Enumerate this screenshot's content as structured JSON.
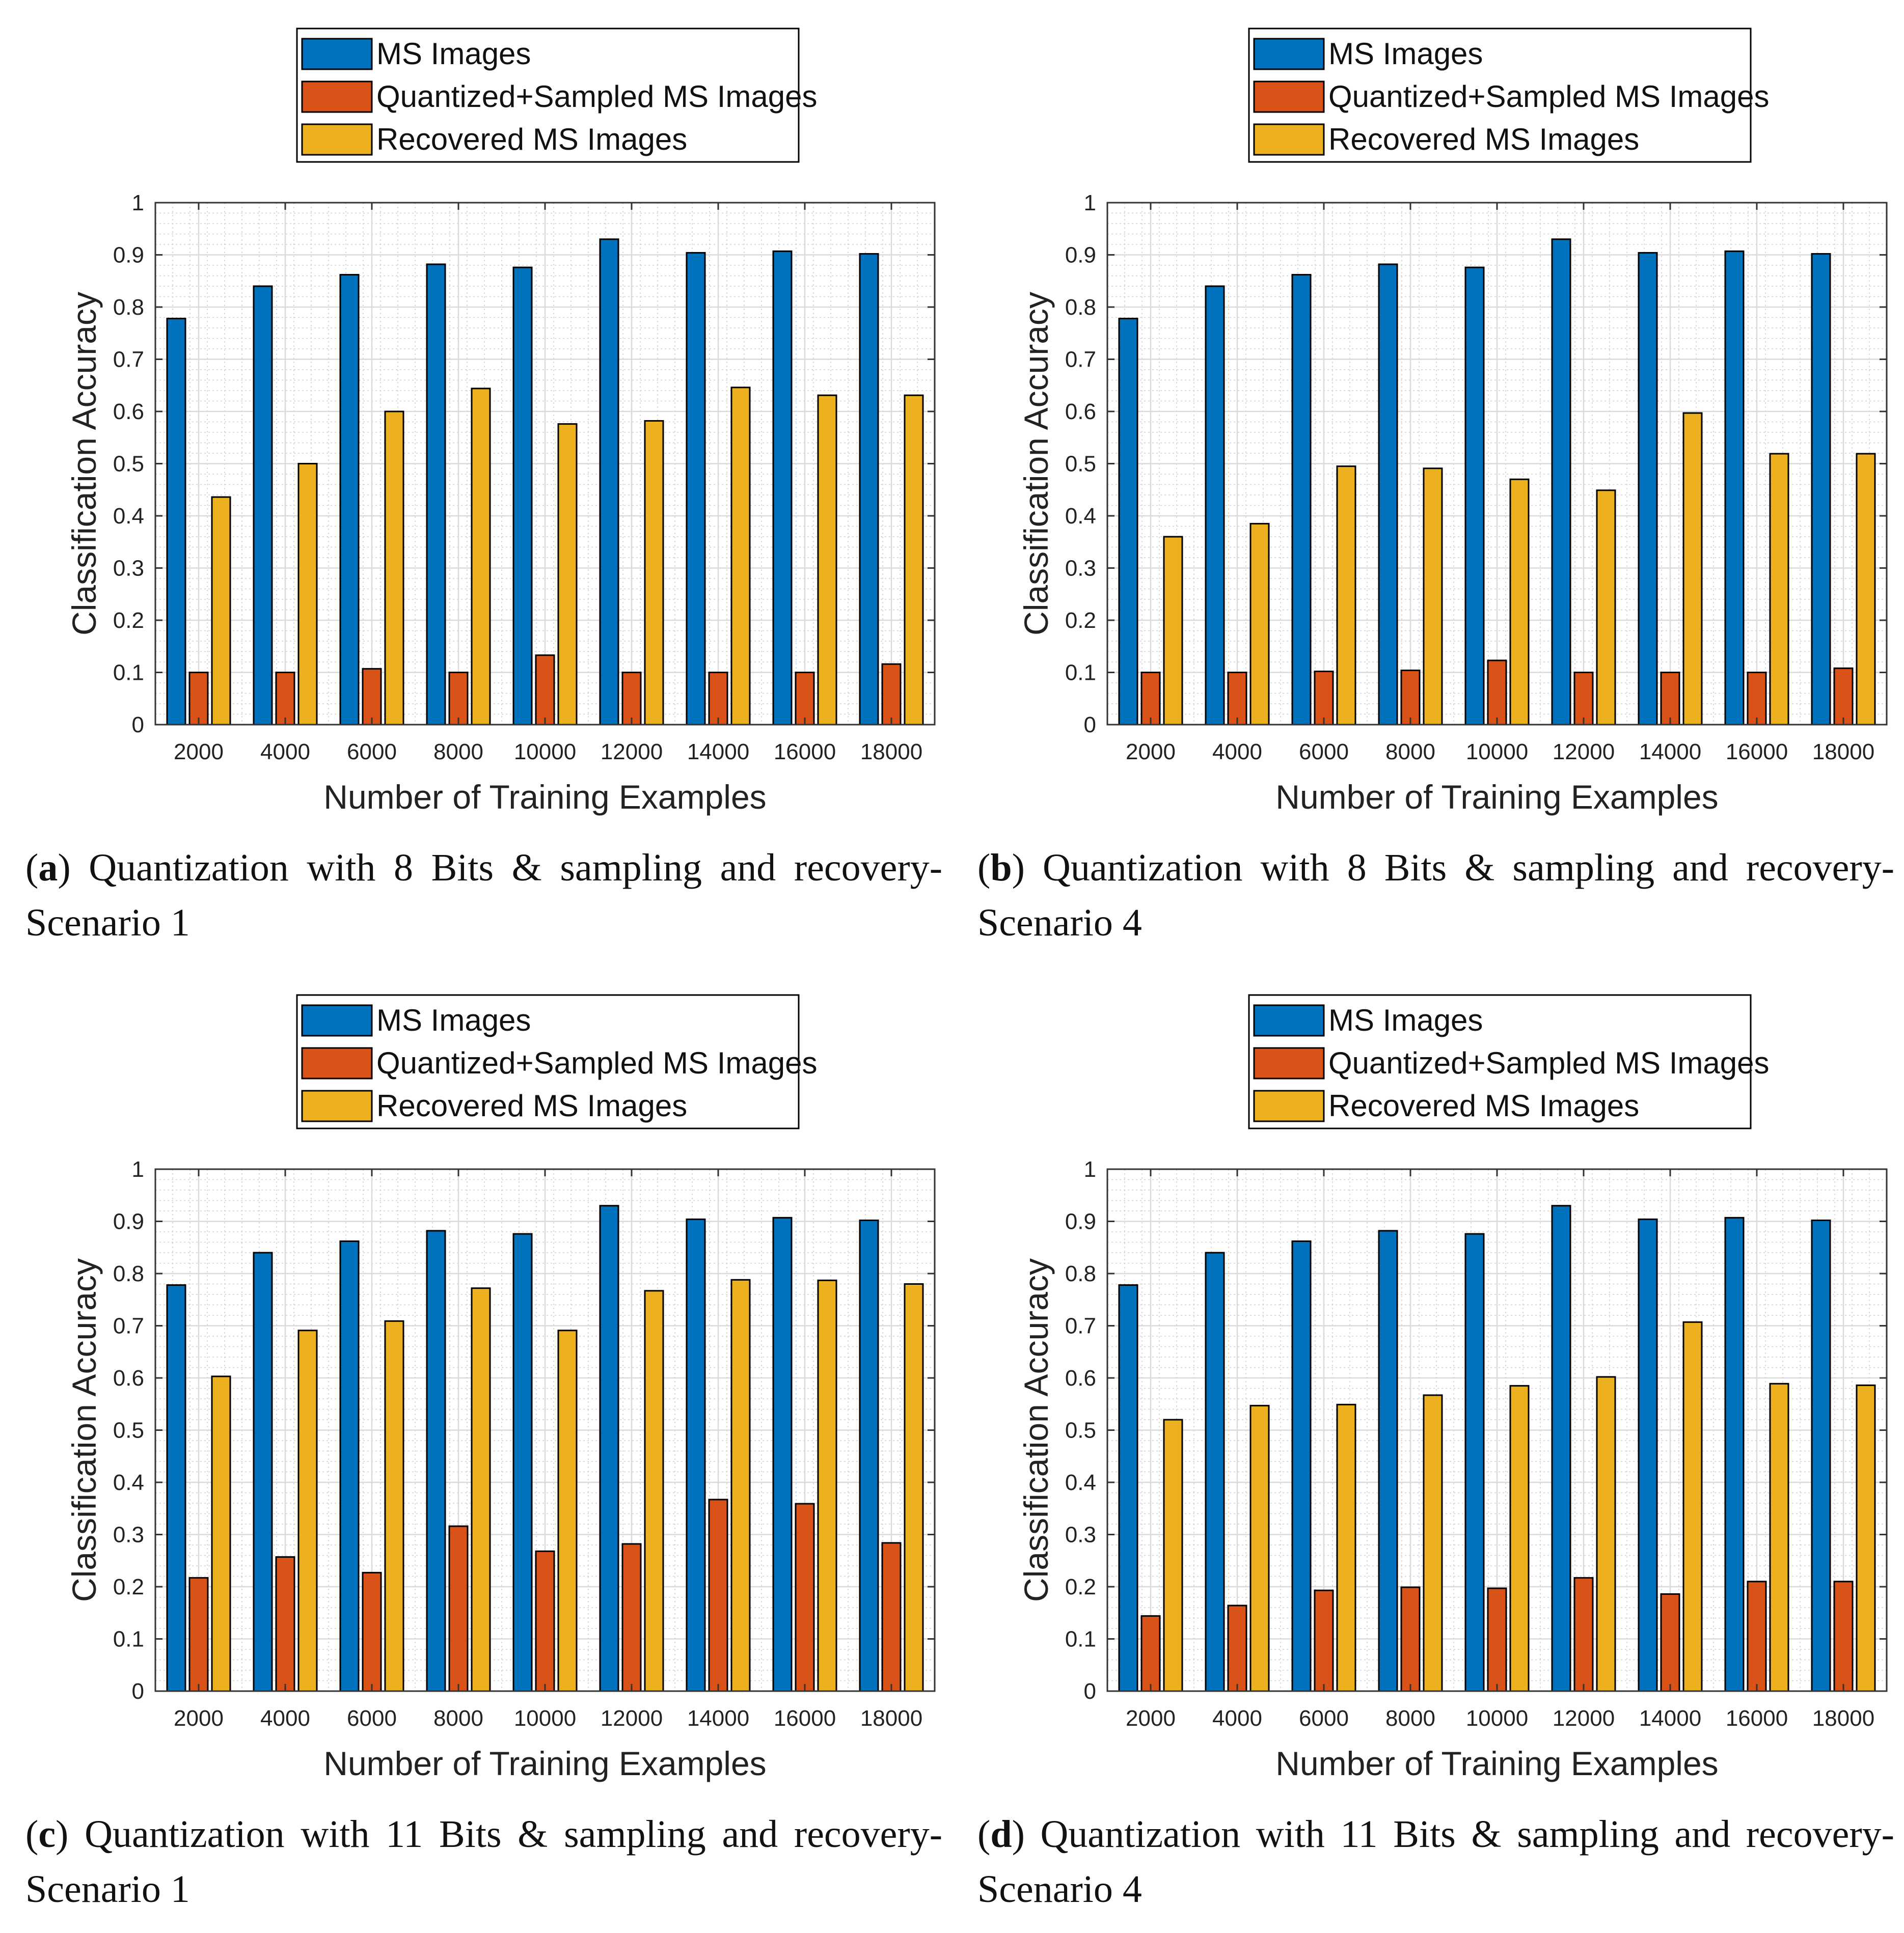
{
  "colors": {
    "ms": "#0072BD",
    "quantized": "#D95319",
    "recovered": "#EDB120"
  },
  "chart_data": [
    {
      "type": "bar",
      "panel_id": "a",
      "categories": [
        "2000",
        "4000",
        "6000",
        "8000",
        "10000",
        "12000",
        "14000",
        "16000",
        "18000"
      ],
      "xlabel": "Number of Training Examples",
      "ylabel": "Classification Accuracy",
      "ylim": [
        0,
        1
      ],
      "yticks": [
        "0",
        "0.1",
        "0.2",
        "0.3",
        "0.4",
        "0.5",
        "0.6",
        "0.7",
        "0.8",
        "0.9",
        "1"
      ],
      "grid": true,
      "legend_position": "top-center",
      "series": [
        {
          "name": "MS Images",
          "values": [
            0.778,
            0.84,
            0.862,
            0.882,
            0.876,
            0.93,
            0.904,
            0.907,
            0.902
          ]
        },
        {
          "name": "Quantized+Sampled MS Images",
          "values": [
            0.1,
            0.1,
            0.107,
            0.1,
            0.133,
            0.1,
            0.1,
            0.1,
            0.116
          ]
        },
        {
          "name": "Recovered MS Images",
          "values": [
            0.436,
            0.5,
            0.6,
            0.644,
            0.576,
            0.582,
            0.646,
            0.631,
            0.631
          ]
        }
      ],
      "caption_label": "a",
      "caption_text": "Quantization with 8 Bits & sampling and recovery-Scenario 1"
    },
    {
      "type": "bar",
      "panel_id": "b",
      "categories": [
        "2000",
        "4000",
        "6000",
        "8000",
        "10000",
        "12000",
        "14000",
        "16000",
        "18000"
      ],
      "xlabel": "Number of Training Examples",
      "ylabel": "Classification Accuracy",
      "ylim": [
        0,
        1
      ],
      "yticks": [
        "0",
        "0.1",
        "0.2",
        "0.3",
        "0.4",
        "0.5",
        "0.6",
        "0.7",
        "0.8",
        "0.9",
        "1"
      ],
      "grid": true,
      "legend_position": "top-center",
      "series": [
        {
          "name": "MS Images",
          "values": [
            0.778,
            0.84,
            0.862,
            0.882,
            0.876,
            0.93,
            0.904,
            0.907,
            0.902
          ]
        },
        {
          "name": "Quantized+Sampled MS Images",
          "values": [
            0.1,
            0.1,
            0.102,
            0.104,
            0.123,
            0.1,
            0.1,
            0.1,
            0.108
          ]
        },
        {
          "name": "Recovered MS Images",
          "values": [
            0.36,
            0.385,
            0.495,
            0.491,
            0.47,
            0.449,
            0.597,
            0.519,
            0.519
          ]
        }
      ],
      "caption_label": "b",
      "caption_text": "Quantization with 8 Bits & sampling and recovery-Scenario 4"
    },
    {
      "type": "bar",
      "panel_id": "c",
      "categories": [
        "2000",
        "4000",
        "6000",
        "8000",
        "10000",
        "12000",
        "14000",
        "16000",
        "18000"
      ],
      "xlabel": "Number of Training Examples",
      "ylabel": "Classification Accuracy",
      "ylim": [
        0,
        1
      ],
      "yticks": [
        "0",
        "0.1",
        "0.2",
        "0.3",
        "0.4",
        "0.5",
        "0.6",
        "0.7",
        "0.8",
        "0.9",
        "1"
      ],
      "grid": true,
      "legend_position": "top-center",
      "series": [
        {
          "name": "MS Images",
          "values": [
            0.778,
            0.84,
            0.862,
            0.882,
            0.876,
            0.93,
            0.904,
            0.907,
            0.902
          ]
        },
        {
          "name": "Quantized+Sampled MS Images",
          "values": [
            0.217,
            0.257,
            0.227,
            0.316,
            0.268,
            0.282,
            0.367,
            0.359,
            0.284
          ]
        },
        {
          "name": "Recovered MS Images",
          "values": [
            0.603,
            0.691,
            0.709,
            0.772,
            0.691,
            0.767,
            0.788,
            0.787,
            0.78
          ]
        }
      ],
      "caption_label": "c",
      "caption_text": "Quantization with 11 Bits & sampling and recovery-Scenario 1"
    },
    {
      "type": "bar",
      "panel_id": "d",
      "categories": [
        "2000",
        "4000",
        "6000",
        "8000",
        "10000",
        "12000",
        "14000",
        "16000",
        "18000"
      ],
      "xlabel": "Number of Training Examples",
      "ylabel": "Classification Accuracy",
      "ylim": [
        0,
        1
      ],
      "yticks": [
        "0",
        "0.1",
        "0.2",
        "0.3",
        "0.4",
        "0.5",
        "0.6",
        "0.7",
        "0.8",
        "0.9",
        "1"
      ],
      "grid": true,
      "legend_position": "top-center",
      "series": [
        {
          "name": "MS Images",
          "values": [
            0.778,
            0.84,
            0.862,
            0.882,
            0.876,
            0.93,
            0.904,
            0.907,
            0.902
          ]
        },
        {
          "name": "Quantized+Sampled MS Images",
          "values": [
            0.144,
            0.164,
            0.193,
            0.199,
            0.197,
            0.217,
            0.186,
            0.21,
            0.21
          ]
        },
        {
          "name": "Recovered MS Images",
          "values": [
            0.52,
            0.547,
            0.549,
            0.567,
            0.585,
            0.602,
            0.707,
            0.589,
            0.586
          ]
        }
      ],
      "caption_label": "d",
      "caption_text": "Quantization with 11 Bits & sampling and recovery-Scenario 4"
    }
  ]
}
